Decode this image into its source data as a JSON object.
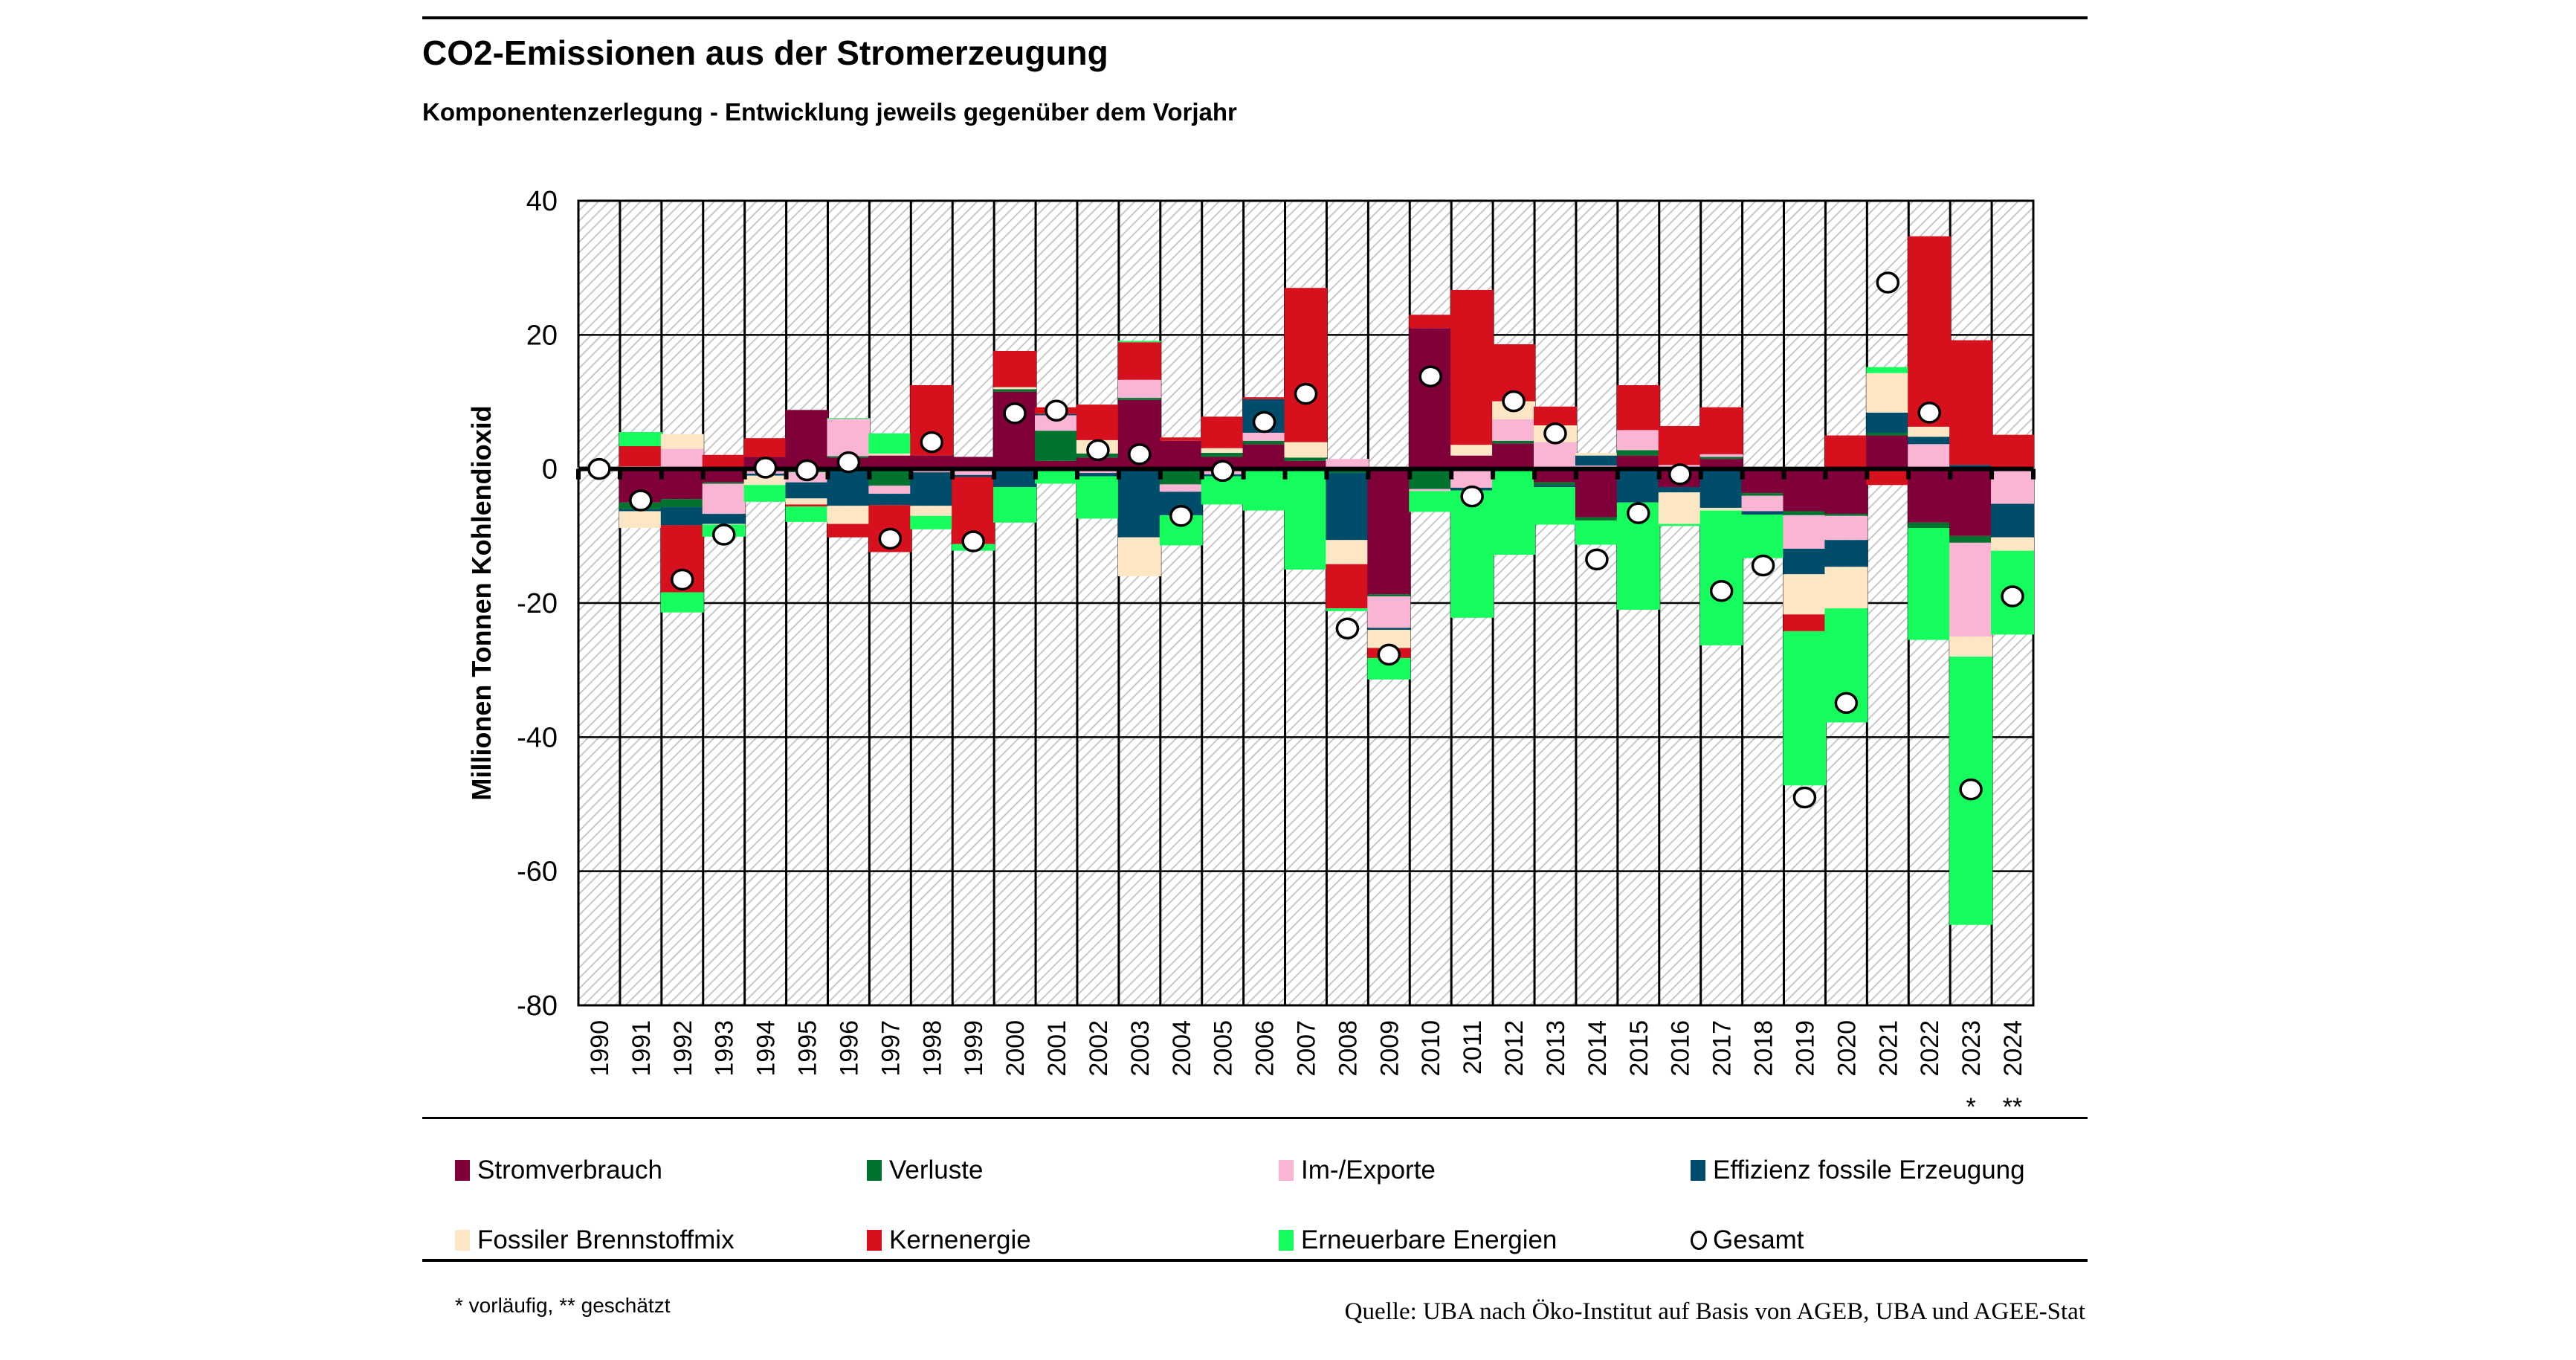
{
  "chart_data": {
    "type": "bar",
    "stacked": true,
    "title": "CO2-Emissionen aus der Stromerzeugung",
    "subtitle": "Komponentenzerlegung - Entwicklung jeweils gegenüber dem Vorjahr",
    "xlabel": "",
    "ylabel": "Millionen Tonnen Kohlendioxid",
    "ylim": [
      -80,
      40
    ],
    "yticks": [
      40,
      20,
      0,
      -20,
      -40,
      -60,
      -80
    ],
    "grid": true,
    "legend_position": "bottom",
    "categories": [
      "1990",
      "1991",
      "1992",
      "1993",
      "1994",
      "1995",
      "1996",
      "1997",
      "1998",
      "1999",
      "2000",
      "2001",
      "2002",
      "2003",
      "2004",
      "2005",
      "2006",
      "2007",
      "2008",
      "2009",
      "2010",
      "2011",
      "2012",
      "2013",
      "2014",
      "2015",
      "2016",
      "2017",
      "2018",
      "2019",
      "2020",
      "2021",
      "2022",
      "2023",
      "2024"
    ],
    "category_markers": {
      "2023": "*",
      "2024": "**"
    },
    "series": [
      {
        "name": "Stromverbrauch",
        "color": "#80003A",
        "values": [
          0,
          -5.0,
          -4.5,
          -2.0,
          1.8,
          8.8,
          1.7,
          2.0,
          2.0,
          1.8,
          11.5,
          1.2,
          1.7,
          10.3,
          4.2,
          1.8,
          3.7,
          1.2,
          -0.2,
          -18.7,
          21.0,
          2.0,
          3.8,
          -2.0,
          -7.2,
          2.0,
          -2.7,
          1.5,
          -3.6,
          -6.3,
          -6.7,
          5.0,
          -8.0,
          -10.0,
          0
        ]
      },
      {
        "name": "Verluste",
        "color": "#00732E",
        "values": [
          0,
          -1.0,
          -1.2,
          -0.2,
          -0.3,
          -0.5,
          0.2,
          -2.5,
          0,
          -0.3,
          0.4,
          4.5,
          0.6,
          0.3,
          -2.3,
          0.6,
          0.5,
          0.5,
          -0.4,
          -0.3,
          -3.0,
          0,
          0.4,
          -0.4,
          -0.5,
          0.8,
          0,
          0.3,
          -0.4,
          -0.6,
          -0.3,
          0.4,
          -0.8,
          -1.0,
          0.3
        ]
      },
      {
        "name": "Im-/Exporte",
        "color": "#FBB5D4",
        "values": [
          0.3,
          0.4,
          3.0,
          -4.5,
          -0.4,
          -1.5,
          5.6,
          -1.2,
          -0.5,
          -0.6,
          -0.2,
          2.3,
          -0.6,
          2.7,
          -1.1,
          -0.8,
          1.2,
          0,
          1.5,
          -4.7,
          -0.3,
          -2.8,
          3.2,
          4.0,
          0.5,
          3.0,
          0.6,
          0.4,
          -2.3,
          -5.0,
          -3.6,
          0,
          3.7,
          -14.0,
          -5.2
        ]
      },
      {
        "name": "Effizienz fossile Erzeugung",
        "color": "#004D6B",
        "values": [
          0,
          -0.3,
          -2.7,
          -1.5,
          -0.3,
          -2.4,
          -5.5,
          -1.7,
          -5.0,
          -0.3,
          -2.5,
          0.2,
          -0.5,
          -10.2,
          -3.5,
          -0.3,
          5.0,
          -0.2,
          -10.0,
          -0.3,
          0,
          -0.4,
          0,
          -0.3,
          1.5,
          -5.0,
          -0.8,
          -5.8,
          -0.5,
          -3.8,
          -4.0,
          3.0,
          1.1,
          0.6,
          -5.0
        ]
      },
      {
        "name": "Fossiler Brennstoffmix",
        "color": "#FDE6C4",
        "values": [
          0,
          -2.5,
          2.2,
          -0.1,
          -1.4,
          -0.9,
          -2.7,
          0.3,
          -1.5,
          0,
          0.3,
          0,
          2.0,
          -5.8,
          0,
          0.7,
          0,
          2.3,
          -3.6,
          -2.7,
          0,
          1.6,
          2.7,
          2.5,
          0.4,
          0,
          -4.7,
          -0.4,
          0,
          -6.0,
          -6.2,
          5.9,
          1.5,
          -3.0,
          -2.0
        ]
      },
      {
        "name": "Kernenergie",
        "color": "#D7101E",
        "values": [
          0,
          3.0,
          -10.0,
          2.1,
          2.8,
          -0.3,
          -2.0,
          -7.0,
          10.5,
          -10.0,
          5.4,
          1.0,
          5.3,
          5.6,
          0.5,
          4.7,
          0.3,
          23.0,
          -6.6,
          -1.5,
          2.0,
          23.1,
          8.5,
          2.8,
          0,
          6.7,
          5.8,
          7.0,
          0,
          -2.5,
          5.0,
          -2.4,
          28.4,
          18.6,
          4.8
        ]
      },
      {
        "name": "Erneuerbare Energien",
        "color": "#16FE5E",
        "values": [
          0,
          2.1,
          -3.0,
          -1.8,
          -2.5,
          -2.3,
          0.1,
          3.0,
          -2.0,
          -1.0,
          -5.3,
          -2.2,
          -6.3,
          0.2,
          -4.5,
          -4.2,
          -6.2,
          -14.8,
          -0.4,
          -3.2,
          -3.1,
          -19.0,
          -12.8,
          -5.6,
          -3.6,
          -16.0,
          -0.3,
          -20.1,
          -6.5,
          -23.0,
          -17.0,
          0.9,
          -16.7,
          -40.0,
          -12.5
        ]
      }
    ],
    "total": {
      "name": "Gesamt",
      "marker": "circle",
      "values": [
        0,
        -4.7,
        -16.5,
        -9.8,
        0.2,
        -0.2,
        1.0,
        -10.4,
        4.0,
        -10.8,
        8.3,
        8.7,
        2.8,
        2.2,
        -7.0,
        -0.3,
        7.0,
        11.2,
        -23.8,
        -27.7,
        13.8,
        -4.1,
        10.1,
        5.3,
        -13.5,
        -6.6,
        -0.8,
        -18.2,
        -14.4,
        -49.0,
        -34.9,
        27.8,
        8.4,
        -47.8,
        -19.0
      ]
    }
  },
  "legend": {
    "items": [
      {
        "label": "Stromverbrauch",
        "color": "#80003A"
      },
      {
        "label": "Verluste",
        "color": "#00732E"
      },
      {
        "label": "Im-/Exporte",
        "color": "#FBB5D4"
      },
      {
        "label": "Effizienz fossile Erzeugung",
        "color": "#004D6B"
      },
      {
        "label": "Fossiler Brennstoffmix",
        "color": "#FDE6C4"
      },
      {
        "label": "Kernenergie",
        "color": "#D7101E"
      },
      {
        "label": "Erneuerbare Energien",
        "color": "#16FE5E"
      },
      {
        "label": "Gesamt",
        "marker": "circle"
      }
    ]
  },
  "footnote": "* vorläufig, ** geschätzt",
  "source": "Quelle: UBA nach Öko-Institut auf Basis von AGEB, UBA und AGEE-Stat"
}
